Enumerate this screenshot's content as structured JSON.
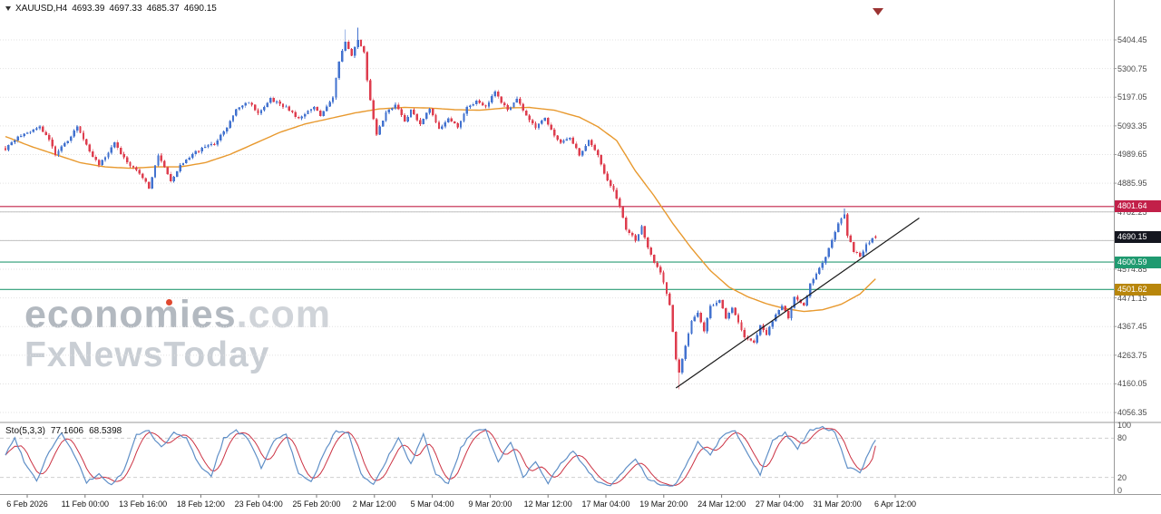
{
  "header": {
    "symbol": "XAUUSD,H4",
    "open": "4693.39",
    "high": "4697.33",
    "low": "4685.37",
    "close": "4690.15"
  },
  "watermark": {
    "brand": "economies",
    "domain": ".com",
    "subbrand": "FxNewsToday",
    "dot_color": "#e0482f"
  },
  "indicator": {
    "label": "Sto(5,3,3)",
    "value_main": "77.1606",
    "value_signal": "68.5398"
  },
  "price_axis": {
    "labels": [
      "5404.45",
      "5300.75",
      "5197.05",
      "5093.35",
      "4989.65",
      "4885.95",
      "4782.25",
      "4678.55",
      "4574.85",
      "4471.15",
      "4367.45",
      "4263.75",
      "4160.05",
      "4056.35"
    ],
    "top_price": 5404.45,
    "step": 103.7
  },
  "time_axis": {
    "labels": [
      "6 Feb 2026",
      "11 Feb 00:00",
      "13 Feb 16:00",
      "18 Feb 12:00",
      "23 Feb 04:00",
      "25 Feb 20:00",
      "2 Mar 12:00",
      "5 Mar 04:00",
      "9 Mar 20:00",
      "12 Mar 12:00",
      "17 Mar 04:00",
      "19 Mar 20:00",
      "24 Mar 12:00",
      "27 Mar 04:00",
      "31 Mar 20:00",
      "6 Apr 12:00"
    ]
  },
  "sub_axis": {
    "labels": [
      "100",
      "80",
      "20",
      "0"
    ],
    "values": [
      100,
      80,
      20,
      0
    ]
  },
  "badges": [
    {
      "label": "4801.64",
      "price": 4801.64,
      "color": "#c22049",
      "name": "resistance"
    },
    {
      "label": "4690.15",
      "price": 4690.15,
      "color": "#14161f",
      "name": "current-price"
    },
    {
      "label": "4600.59",
      "price": 4600.59,
      "color": "#1f9a70",
      "name": "support"
    },
    {
      "label": "4501.62",
      "price": 4501.62,
      "color": "#b8860b",
      "name": "target"
    }
  ],
  "hlines": [
    {
      "price": 4801.64,
      "color": "#c22049",
      "name": "resistance-line"
    },
    {
      "price": 4600.59,
      "color": "#2a9c74",
      "name": "support-line-1"
    },
    {
      "price": 4501.62,
      "color": "#2a9c74",
      "name": "support-line-2"
    }
  ],
  "gray_lines": [
    4782.25,
    4678.55
  ],
  "chart_data": [
    {
      "type": "candlestick",
      "title": "XAUUSD H4",
      "bars": 280,
      "x_range": [
        "6 Feb 2026",
        "6 Apr 2026"
      ],
      "ylim": [
        4030,
        5480
      ],
      "up_color": "#4272cf",
      "down_color": "#de3d4e",
      "last_bar": {
        "open": 4693.39,
        "high": 4697.33,
        "low": 4685.37,
        "close": 4690.15
      },
      "close_path": [
        [
          0,
          5010
        ],
        [
          4,
          5055
        ],
        [
          8,
          5070
        ],
        [
          11,
          5090
        ],
        [
          14,
          5040
        ],
        [
          16,
          4990
        ],
        [
          20,
          5040
        ],
        [
          23,
          5090
        ],
        [
          27,
          5000
        ],
        [
          30,
          4950
        ],
        [
          33,
          5000
        ],
        [
          35,
          5030
        ],
        [
          39,
          4960
        ],
        [
          43,
          4920
        ],
        [
          46,
          4870
        ],
        [
          49,
          4990
        ],
        [
          53,
          4890
        ],
        [
          56,
          4950
        ],
        [
          61,
          5000
        ],
        [
          67,
          5030
        ],
        [
          71,
          5090
        ],
        [
          74,
          5150
        ],
        [
          78,
          5180
        ],
        [
          81,
          5140
        ],
        [
          85,
          5190
        ],
        [
          90,
          5160
        ],
        [
          94,
          5120
        ],
        [
          99,
          5160
        ],
        [
          101,
          5130
        ],
        [
          105,
          5200
        ],
        [
          107,
          5330
        ],
        [
          109,
          5400
        ],
        [
          111,
          5350
        ],
        [
          113,
          5405
        ],
        [
          115,
          5360
        ],
        [
          116,
          5260
        ],
        [
          118,
          5120
        ],
        [
          119,
          5060
        ],
        [
          122,
          5140
        ],
        [
          125,
          5170
        ],
        [
          128,
          5110
        ],
        [
          130,
          5150
        ],
        [
          133,
          5100
        ],
        [
          136,
          5160
        ],
        [
          139,
          5080
        ],
        [
          142,
          5120
        ],
        [
          145,
          5090
        ],
        [
          148,
          5160
        ],
        [
          151,
          5180
        ],
        [
          154,
          5160
        ],
        [
          157,
          5220
        ],
        [
          159,
          5180
        ],
        [
          161,
          5150
        ],
        [
          164,
          5190
        ],
        [
          167,
          5130
        ],
        [
          170,
          5090
        ],
        [
          173,
          5120
        ],
        [
          176,
          5060
        ],
        [
          178,
          5030
        ],
        [
          181,
          5050
        ],
        [
          184,
          4990
        ],
        [
          187,
          5040
        ],
        [
          190,
          4990
        ],
        [
          192,
          4920
        ],
        [
          195,
          4860
        ],
        [
          197,
          4800
        ],
        [
          199,
          4720
        ],
        [
          202,
          4680
        ],
        [
          204,
          4730
        ],
        [
          206,
          4650
        ],
        [
          208,
          4600
        ],
        [
          210,
          4560
        ],
        [
          213,
          4450
        ],
        [
          215,
          4250
        ],
        [
          216,
          4200
        ],
        [
          218,
          4300
        ],
        [
          220,
          4390
        ],
        [
          222,
          4420
        ],
        [
          224,
          4350
        ],
        [
          226,
          4440
        ],
        [
          229,
          4460
        ],
        [
          231,
          4400
        ],
        [
          233,
          4440
        ],
        [
          235,
          4380
        ],
        [
          237,
          4330
        ],
        [
          240,
          4310
        ],
        [
          242,
          4370
        ],
        [
          244,
          4340
        ],
        [
          247,
          4410
        ],
        [
          249,
          4440
        ],
        [
          251,
          4400
        ],
        [
          253,
          4470
        ],
        [
          256,
          4440
        ],
        [
          258,
          4520
        ],
        [
          260,
          4560
        ],
        [
          263,
          4620
        ],
        [
          265,
          4680
        ],
        [
          267,
          4740
        ],
        [
          269,
          4775
        ],
        [
          270,
          4700
        ],
        [
          272,
          4640
        ],
        [
          274,
          4620
        ],
        [
          276,
          4665
        ],
        [
          278,
          4685
        ],
        [
          279,
          4690.15
        ]
      ],
      "key_points": [
        {
          "bar": 109,
          "type": "high",
          "price": 5442
        },
        {
          "bar": 113,
          "type": "high",
          "price": 5448
        },
        {
          "bar": 216,
          "type": "low",
          "price": 4140
        },
        {
          "bar": 269,
          "type": "high",
          "price": 4795
        }
      ]
    },
    {
      "type": "line",
      "name": "moving-average",
      "color": "#e8992e",
      "points": [
        [
          0,
          5055
        ],
        [
          8,
          5020
        ],
        [
          16,
          4990
        ],
        [
          24,
          4960
        ],
        [
          32,
          4945
        ],
        [
          40,
          4940
        ],
        [
          48,
          4945
        ],
        [
          56,
          4945
        ],
        [
          64,
          4960
        ],
        [
          72,
          4990
        ],
        [
          80,
          5030
        ],
        [
          88,
          5070
        ],
        [
          96,
          5100
        ],
        [
          104,
          5120
        ],
        [
          112,
          5140
        ],
        [
          120,
          5155
        ],
        [
          128,
          5160
        ],
        [
          136,
          5158
        ],
        [
          144,
          5152
        ],
        [
          152,
          5150
        ],
        [
          160,
          5158
        ],
        [
          168,
          5160
        ],
        [
          176,
          5150
        ],
        [
          184,
          5125
        ],
        [
          190,
          5090
        ],
        [
          196,
          5040
        ],
        [
          202,
          4930
        ],
        [
          208,
          4840
        ],
        [
          214,
          4740
        ],
        [
          220,
          4650
        ],
        [
          226,
          4570
        ],
        [
          232,
          4510
        ],
        [
          238,
          4475
        ],
        [
          244,
          4450
        ],
        [
          250,
          4432
        ],
        [
          256,
          4422
        ],
        [
          262,
          4428
        ],
        [
          268,
          4448
        ],
        [
          274,
          4485
        ],
        [
          279,
          4540
        ]
      ]
    },
    {
      "type": "line",
      "name": "trendline",
      "color": "#1b1b1b",
      "points": [
        [
          215,
          4145
        ],
        [
          293,
          4760
        ]
      ]
    },
    {
      "type": "line",
      "name": "stochastic",
      "range": [
        0,
        100
      ],
      "levels": [
        20,
        80
      ],
      "main_color": "#5f8fc7",
      "signal_color": "#cc3344",
      "last_main": 77.1606,
      "last_signal": 68.5398,
      "path": [
        [
          0,
          55
        ],
        [
          3,
          80
        ],
        [
          6,
          45
        ],
        [
          10,
          15
        ],
        [
          14,
          60
        ],
        [
          18,
          88
        ],
        [
          22,
          55
        ],
        [
          26,
          12
        ],
        [
          30,
          25
        ],
        [
          34,
          8
        ],
        [
          38,
          30
        ],
        [
          42,
          85
        ],
        [
          46,
          92
        ],
        [
          50,
          65
        ],
        [
          54,
          88
        ],
        [
          58,
          80
        ],
        [
          62,
          40
        ],
        [
          66,
          22
        ],
        [
          70,
          80
        ],
        [
          74,
          92
        ],
        [
          78,
          78
        ],
        [
          82,
          35
        ],
        [
          86,
          75
        ],
        [
          90,
          88
        ],
        [
          94,
          25
        ],
        [
          98,
          12
        ],
        [
          102,
          55
        ],
        [
          106,
          92
        ],
        [
          110,
          88
        ],
        [
          114,
          25
        ],
        [
          118,
          8
        ],
        [
          122,
          45
        ],
        [
          126,
          80
        ],
        [
          130,
          40
        ],
        [
          134,
          85
        ],
        [
          138,
          25
        ],
        [
          142,
          10
        ],
        [
          146,
          65
        ],
        [
          150,
          90
        ],
        [
          154,
          92
        ],
        [
          158,
          45
        ],
        [
          162,
          75
        ],
        [
          166,
          20
        ],
        [
          170,
          45
        ],
        [
          174,
          12
        ],
        [
          178,
          40
        ],
        [
          182,
          60
        ],
        [
          186,
          35
        ],
        [
          190,
          12
        ],
        [
          194,
          8
        ],
        [
          198,
          28
        ],
        [
          202,
          48
        ],
        [
          206,
          18
        ],
        [
          210,
          8
        ],
        [
          214,
          5
        ],
        [
          218,
          35
        ],
        [
          222,
          75
        ],
        [
          226,
          55
        ],
        [
          230,
          85
        ],
        [
          234,
          92
        ],
        [
          238,
          55
        ],
        [
          242,
          25
        ],
        [
          246,
          78
        ],
        [
          250,
          88
        ],
        [
          254,
          65
        ],
        [
          258,
          92
        ],
        [
          262,
          96
        ],
        [
          266,
          90
        ],
        [
          270,
          35
        ],
        [
          274,
          28
        ],
        [
          277,
          60
        ],
        [
          279,
          77.1606
        ]
      ]
    }
  ]
}
